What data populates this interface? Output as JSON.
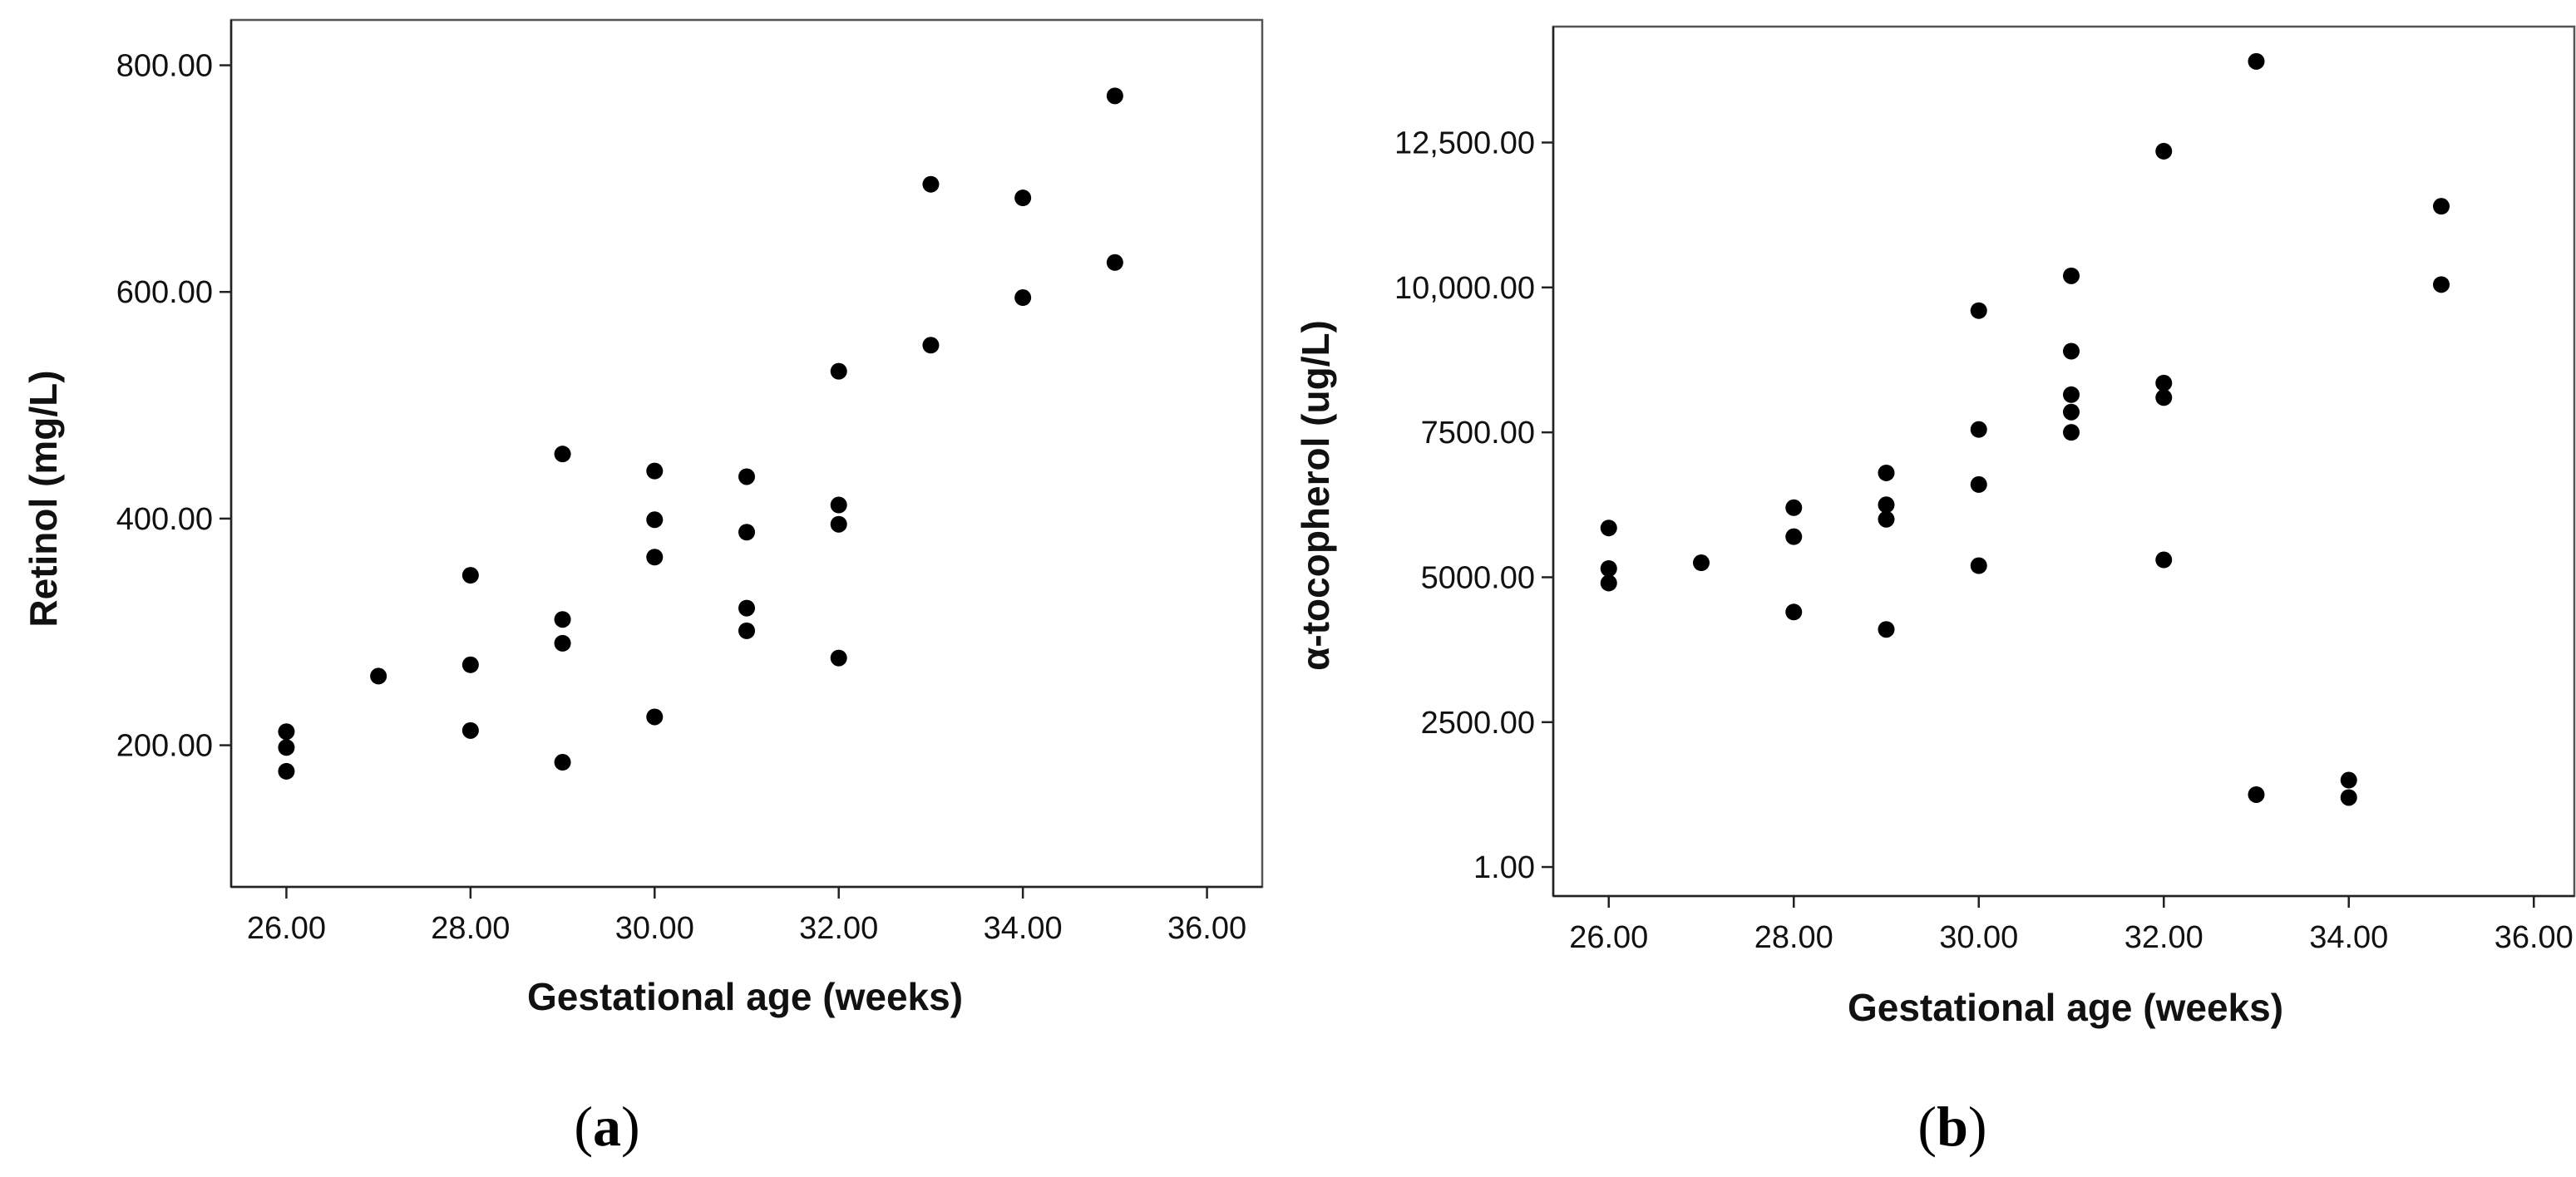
{
  "chart_data": [
    {
      "type": "scatter",
      "panel_label": "a",
      "xlabel": "Gestational age (weeks)",
      "ylabel": "Retinol (mg/L)",
      "xlim": [
        25.4,
        36.6
      ],
      "ylim": [
        75,
        840
      ],
      "xticks": [
        26,
        28,
        30,
        32,
        34,
        36
      ],
      "xtick_labels": [
        "26.00",
        "28.00",
        "30.00",
        "32.00",
        "34.00",
        "36.00"
      ],
      "yticks": [
        200,
        400,
        600,
        800
      ],
      "ytick_labels": [
        "200.00",
        "400.00",
        "600.00",
        "800.00"
      ],
      "grid": false,
      "points": [
        [
          26,
          212
        ],
        [
          26,
          198
        ],
        [
          26,
          177
        ],
        [
          27,
          261
        ],
        [
          28,
          350
        ],
        [
          28,
          271
        ],
        [
          28,
          213
        ],
        [
          29,
          457
        ],
        [
          29,
          311
        ],
        [
          29,
          290
        ],
        [
          29,
          185
        ],
        [
          30,
          442
        ],
        [
          30,
          399
        ],
        [
          30,
          366
        ],
        [
          30,
          225
        ],
        [
          31,
          437
        ],
        [
          31,
          388
        ],
        [
          31,
          321
        ],
        [
          31,
          301
        ],
        [
          32,
          530
        ],
        [
          32,
          412
        ],
        [
          32,
          395
        ],
        [
          32,
          277
        ],
        [
          33,
          695
        ],
        [
          33,
          553
        ],
        [
          34,
          683
        ],
        [
          34,
          595
        ],
        [
          35,
          773
        ],
        [
          35,
          626
        ]
      ]
    },
    {
      "type": "scatter",
      "panel_label": "b",
      "xlabel": "Gestational age (weeks)",
      "ylabel": "α-tocopherol (ug/L)",
      "xlim": [
        25.4,
        36.6
      ],
      "ylim": [
        -500,
        14500
      ],
      "xticks": [
        26,
        28,
        30,
        32,
        34,
        36
      ],
      "xtick_labels": [
        "26.00",
        "28.00",
        "30.00",
        "32.00",
        "34.00",
        "36.00"
      ],
      "yticks": [
        1,
        2500,
        5000,
        7500,
        10000,
        12500
      ],
      "ytick_labels": [
        "1.00",
        "2500.00",
        "5000.00",
        "7500.00",
        "10,000.00",
        "12,500.00"
      ],
      "grid": false,
      "points": [
        [
          26,
          5850
        ],
        [
          26,
          5150
        ],
        [
          26,
          4900
        ],
        [
          27,
          5250
        ],
        [
          28,
          6200
        ],
        [
          28,
          5700
        ],
        [
          28,
          4400
        ],
        [
          29,
          6800
        ],
        [
          29,
          6250
        ],
        [
          29,
          6000
        ],
        [
          29,
          4100
        ],
        [
          30,
          9600
        ],
        [
          30,
          7550
        ],
        [
          30,
          6600
        ],
        [
          30,
          5200
        ],
        [
          31,
          10200
        ],
        [
          31,
          8900
        ],
        [
          31,
          8150
        ],
        [
          31,
          7850
        ],
        [
          31,
          7500
        ],
        [
          32,
          12350
        ],
        [
          32,
          8350
        ],
        [
          32,
          8100
        ],
        [
          32,
          5300
        ],
        [
          33,
          13900
        ],
        [
          33,
          1250
        ],
        [
          34,
          1500
        ],
        [
          34,
          1200
        ],
        [
          35,
          11400
        ],
        [
          35,
          10050
        ]
      ]
    }
  ]
}
